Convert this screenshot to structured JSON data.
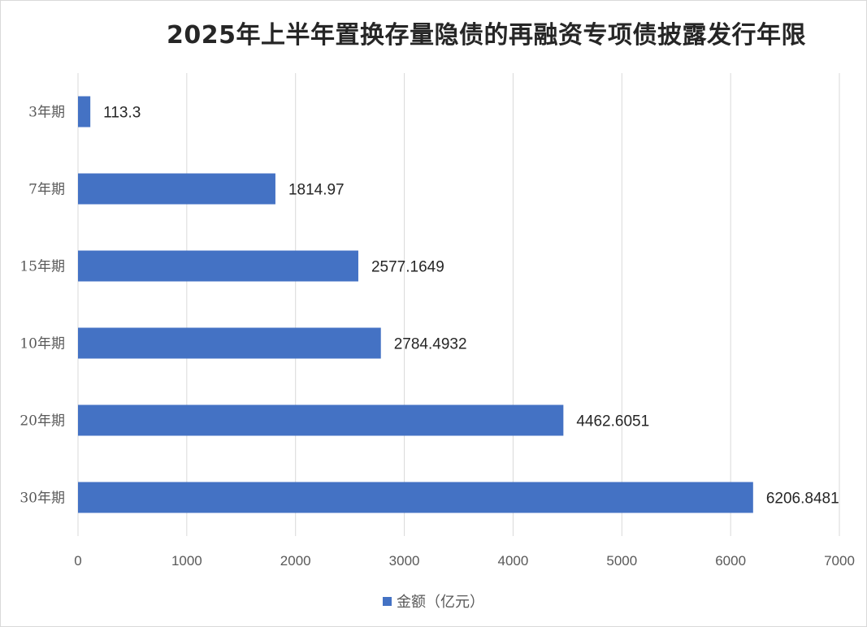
{
  "chart_data": {
    "type": "bar",
    "orientation": "horizontal",
    "title": "2025年上半年置换存量隐债的再融资专项债披露发行年限",
    "categories": [
      "3年期",
      "7年期",
      "15年期",
      "10年期",
      "20年期",
      "30年期"
    ],
    "series": [
      {
        "name": "金额（亿元）",
        "values": [
          113.3,
          1814.97,
          2577.1649,
          2784.4932,
          4462.6051,
          6206.8481
        ],
        "color": "#4472c4"
      }
    ],
    "data_labels": [
      "113.3",
      "1814.97",
      "2577.1649",
      "2784.4932",
      "4462.6051",
      "6206.8481"
    ],
    "x_ticks": [
      "0",
      "1000",
      "2000",
      "3000",
      "4000",
      "5000",
      "6000",
      "7000"
    ],
    "xlim": [
      0,
      7000
    ],
    "grid": true,
    "legend_position": "bottom"
  }
}
